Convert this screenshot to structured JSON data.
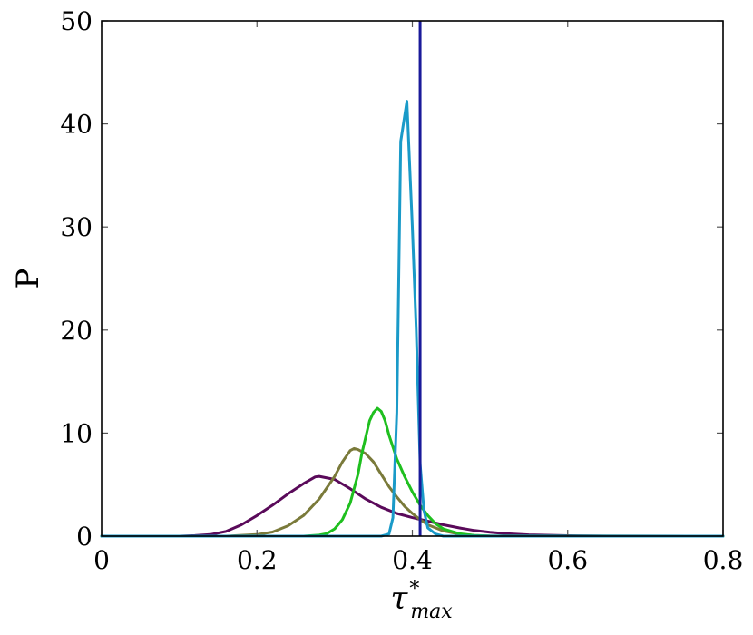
{
  "chart_data": {
    "type": "line",
    "title": "",
    "xlabel": {
      "symbol": "τ",
      "superscript": "*",
      "subscript": "max"
    },
    "ylabel": "P",
    "xlim": [
      0,
      0.8
    ],
    "ylim": [
      0,
      50
    ],
    "x_ticks": [
      0,
      0.2,
      0.4,
      0.6,
      0.8
    ],
    "x_tick_labels": [
      "0",
      "0.2",
      "0.4",
      "0.6",
      "0.8"
    ],
    "y_ticks": [
      0,
      10,
      20,
      30,
      40,
      50
    ],
    "y_tick_labels": [
      "0",
      "10",
      "20",
      "30",
      "40",
      "50"
    ],
    "grid": false,
    "vertical_line": {
      "x": 0.41,
      "color": "#1a1a9a"
    },
    "series": [
      {
        "color": "#5a0a5a",
        "points": [
          [
            0,
            0
          ],
          [
            0.1,
            0
          ],
          [
            0.12,
            0.05
          ],
          [
            0.14,
            0.15
          ],
          [
            0.16,
            0.45
          ],
          [
            0.18,
            1.1
          ],
          [
            0.2,
            2.0
          ],
          [
            0.22,
            3.0
          ],
          [
            0.24,
            4.1
          ],
          [
            0.26,
            5.1
          ],
          [
            0.275,
            5.75
          ],
          [
            0.28,
            5.8
          ],
          [
            0.3,
            5.5
          ],
          [
            0.32,
            4.6
          ],
          [
            0.34,
            3.6
          ],
          [
            0.36,
            2.8
          ],
          [
            0.38,
            2.2
          ],
          [
            0.4,
            1.8
          ],
          [
            0.42,
            1.45
          ],
          [
            0.44,
            1.1
          ],
          [
            0.46,
            0.8
          ],
          [
            0.48,
            0.55
          ],
          [
            0.5,
            0.38
          ],
          [
            0.52,
            0.25
          ],
          [
            0.55,
            0.12
          ],
          [
            0.6,
            0.04
          ],
          [
            0.65,
            0.01
          ],
          [
            0.8,
            0
          ]
        ]
      },
      {
        "color": "#7a7a3a",
        "points": [
          [
            0,
            0
          ],
          [
            0.16,
            0
          ],
          [
            0.2,
            0.15
          ],
          [
            0.22,
            0.4
          ],
          [
            0.24,
            1.0
          ],
          [
            0.26,
            2.0
          ],
          [
            0.28,
            3.6
          ],
          [
            0.3,
            5.8
          ],
          [
            0.31,
            7.2
          ],
          [
            0.32,
            8.3
          ],
          [
            0.325,
            8.5
          ],
          [
            0.33,
            8.4
          ],
          [
            0.34,
            8.0
          ],
          [
            0.35,
            7.2
          ],
          [
            0.36,
            6.0
          ],
          [
            0.37,
            4.8
          ],
          [
            0.38,
            3.8
          ],
          [
            0.39,
            2.9
          ],
          [
            0.4,
            2.2
          ],
          [
            0.41,
            1.6
          ],
          [
            0.42,
            1.1
          ],
          [
            0.44,
            0.5
          ],
          [
            0.46,
            0.2
          ],
          [
            0.48,
            0.07
          ],
          [
            0.5,
            0.02
          ],
          [
            0.55,
            0
          ],
          [
            0.8,
            0
          ]
        ]
      },
      {
        "color": "#1fbf1f",
        "points": [
          [
            0,
            0
          ],
          [
            0.26,
            0
          ],
          [
            0.28,
            0.1
          ],
          [
            0.29,
            0.25
          ],
          [
            0.3,
            0.7
          ],
          [
            0.31,
            1.6
          ],
          [
            0.32,
            3.2
          ],
          [
            0.33,
            6.0
          ],
          [
            0.335,
            8.0
          ],
          [
            0.34,
            9.6
          ],
          [
            0.345,
            11.2
          ],
          [
            0.35,
            12.0
          ],
          [
            0.355,
            12.4
          ],
          [
            0.36,
            12.1
          ],
          [
            0.365,
            11.2
          ],
          [
            0.37,
            9.8
          ],
          [
            0.38,
            7.5
          ],
          [
            0.39,
            5.8
          ],
          [
            0.4,
            4.3
          ],
          [
            0.41,
            3.0
          ],
          [
            0.42,
            2.0
          ],
          [
            0.43,
            1.2
          ],
          [
            0.44,
            0.7
          ],
          [
            0.46,
            0.25
          ],
          [
            0.48,
            0.06
          ],
          [
            0.5,
            0.01
          ],
          [
            0.8,
            0
          ]
        ]
      },
      {
        "color": "#1a9ac8",
        "points": [
          [
            0,
            0
          ],
          [
            0.36,
            0
          ],
          [
            0.37,
            0.2
          ],
          [
            0.375,
            1.8
          ],
          [
            0.38,
            12.0
          ],
          [
            0.385,
            38.3
          ],
          [
            0.393,
            42.2
          ],
          [
            0.4,
            30.0
          ],
          [
            0.405,
            20.0
          ],
          [
            0.41,
            7.0
          ],
          [
            0.415,
            2.5
          ],
          [
            0.42,
            0.8
          ],
          [
            0.43,
            0.2
          ],
          [
            0.44,
            0
          ],
          [
            0.8,
            0
          ]
        ]
      }
    ]
  }
}
